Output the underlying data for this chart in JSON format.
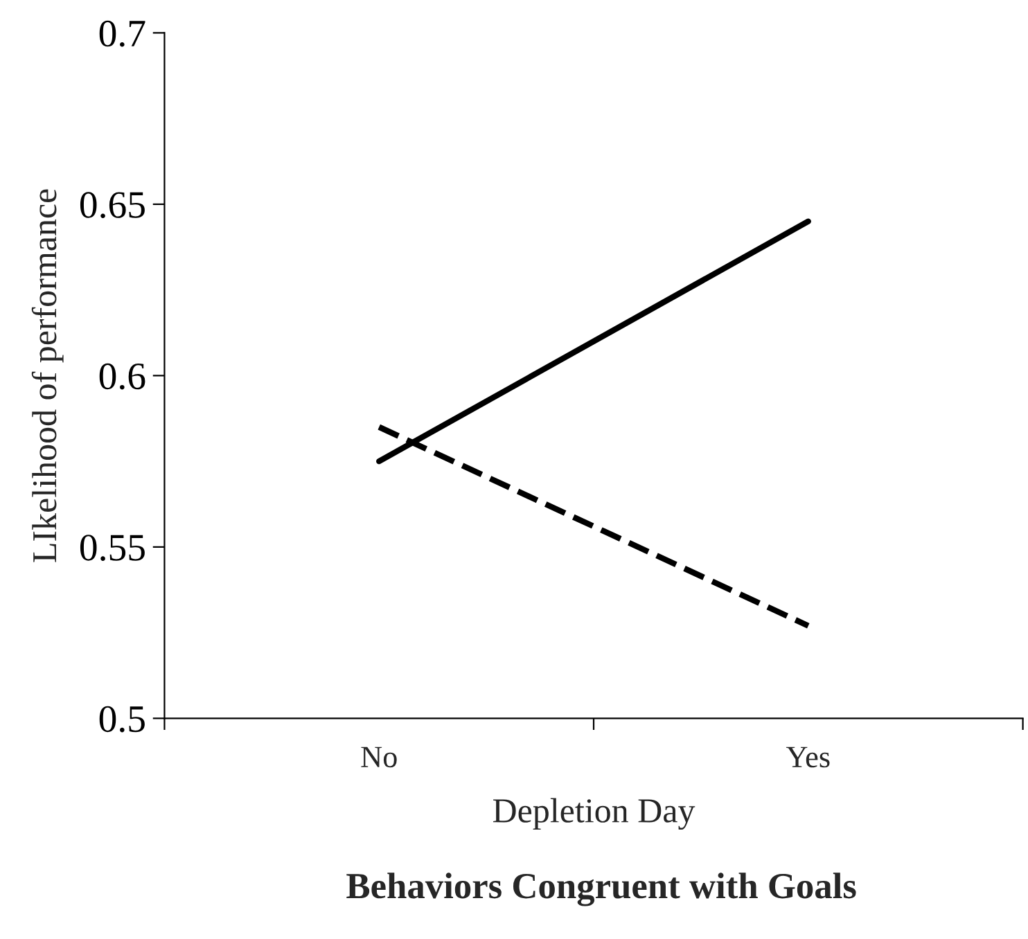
{
  "chart_data": {
    "type": "line",
    "title": "Behaviors Congruent with Goals",
    "xlabel": "Depletion Day",
    "ylabel": "LIkelihood of performance",
    "categories": [
      "No",
      "Yes"
    ],
    "series": [
      {
        "color": "#000000",
        "line_style": "solid",
        "values": [
          0.575,
          0.645
        ]
      },
      {
        "color": "#000000",
        "line_style": "dashed",
        "values": [
          0.585,
          0.527
        ]
      }
    ],
    "ylim": [
      0.5,
      0.7
    ],
    "yticks": [
      {
        "value": 0.5,
        "label": "0.5"
      },
      {
        "value": 0.55,
        "label": "0.55"
      },
      {
        "value": 0.6,
        "label": "0.6"
      },
      {
        "value": 0.65,
        "label": "0.65"
      },
      {
        "value": 0.7,
        "label": "0.7"
      }
    ],
    "grid": false,
    "legend": false,
    "marker": "none"
  }
}
